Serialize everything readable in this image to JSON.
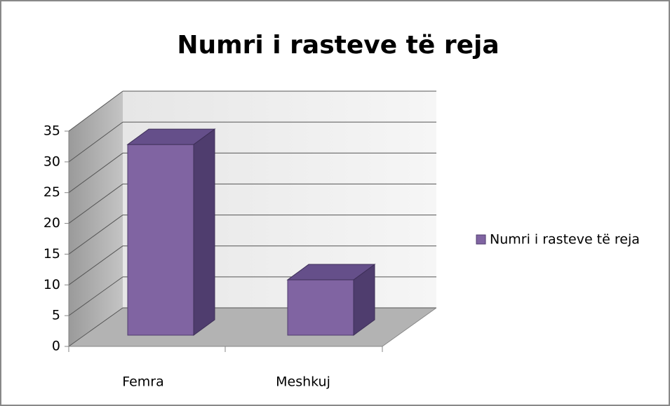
{
  "chart_data": {
    "type": "bar3d",
    "title": "Numri i rasteve të reja",
    "categories": [
      "Femra",
      "Meshkuj"
    ],
    "series": [
      {
        "name": "Numri i rasteve të reja",
        "color": "#8064a2",
        "values": [
          31,
          9
        ]
      }
    ],
    "ylim": [
      0,
      35
    ],
    "yticks": [
      0,
      5,
      10,
      15,
      20,
      25,
      30,
      35
    ],
    "grid": true,
    "legend": "right"
  }
}
